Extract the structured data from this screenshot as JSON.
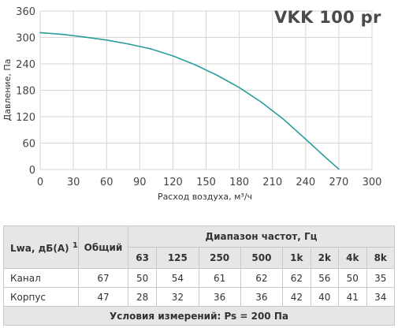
{
  "chart_data": {
    "type": "line",
    "title": "VKK 100 pr",
    "xlabel": "Расход воздуха, м³/ч",
    "ylabel": "Давление, Па",
    "xlim": [
      0,
      300
    ],
    "ylim": [
      0,
      360
    ],
    "xticks": [
      "0",
      "30",
      "60",
      "90",
      "120",
      "150",
      "180",
      "210",
      "240",
      "270",
      "300"
    ],
    "yticks": [
      "0",
      "60",
      "120",
      "180",
      "240",
      "300",
      "360"
    ],
    "grid": true,
    "series": [
      {
        "color": "#2a9d9a",
        "x": [
          0,
          20,
          40,
          60,
          80,
          100,
          120,
          140,
          160,
          180,
          200,
          220,
          240,
          260,
          270
        ],
        "y": [
          311,
          307,
          301,
          294,
          285,
          274,
          258,
          238,
          214,
          186,
          153,
          114,
          69,
          23,
          1
        ]
      }
    ]
  },
  "table": {
    "row_header": "Lwa, дБ(A)",
    "row_header_sup": "1",
    "total_header": "Общий",
    "freq_header": "Диапазон частот, Гц",
    "freqs": [
      "63",
      "125",
      "250",
      "500",
      "1k",
      "2k",
      "4k",
      "8k"
    ],
    "rows": [
      {
        "label": "Канал",
        "total": "67",
        "values": [
          "50",
          "54",
          "61",
          "62",
          "62",
          "56",
          "50",
          "35"
        ]
      },
      {
        "label": "Корпус",
        "total": "47",
        "values": [
          "28",
          "32",
          "36",
          "36",
          "42",
          "40",
          "41",
          "34"
        ]
      }
    ],
    "footer": "Условия измерений: Ps = 200 Па"
  },
  "colors": {
    "curve": "#2a9d9a",
    "grid": "#d6d6d6",
    "header_bg": "#e6e6e6"
  }
}
